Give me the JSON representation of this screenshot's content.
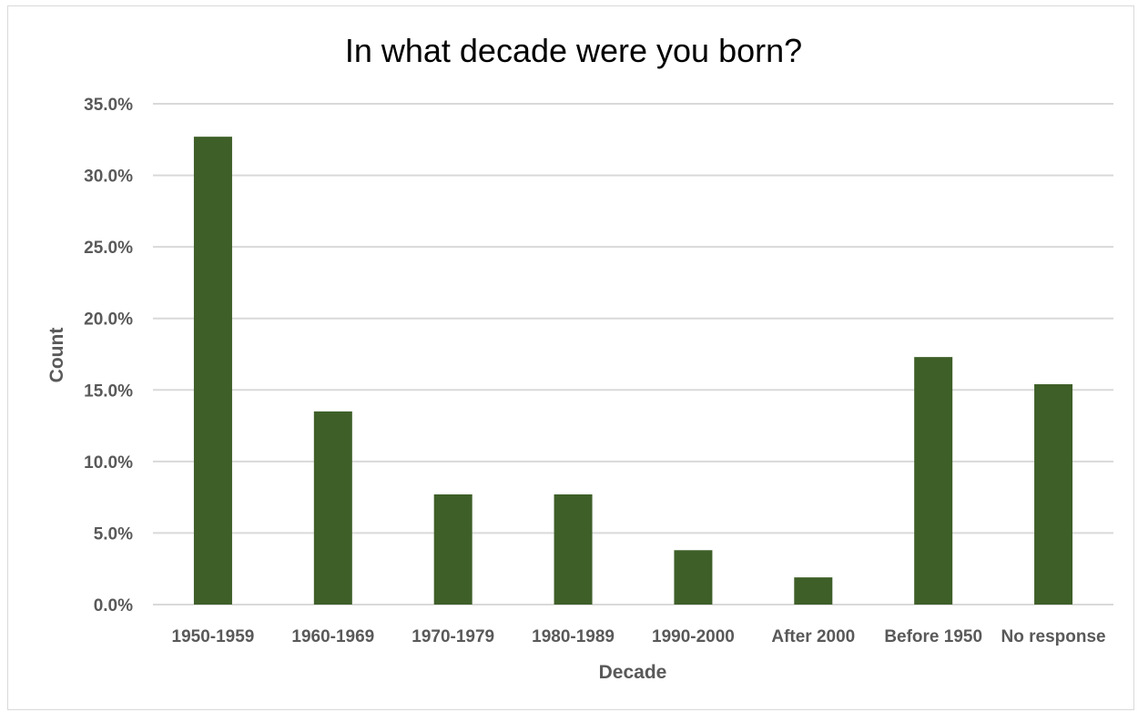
{
  "chart_data": {
    "type": "bar",
    "title": "In what decade were you born?",
    "xlabel": "Decade",
    "ylabel": "Count",
    "categories": [
      "1950-1959",
      "1960-1969",
      "1970-1979",
      "1980-1989",
      "1990-2000",
      "After 2000",
      "Before 1950",
      "No response"
    ],
    "values": [
      32.7,
      13.5,
      7.7,
      7.7,
      3.8,
      1.9,
      17.3,
      15.4
    ],
    "ylim": [
      0,
      35
    ],
    "yticks": [
      0,
      5,
      10,
      15,
      20,
      25,
      30,
      35
    ],
    "ytick_labels": [
      "0.0%",
      "5.0%",
      "10.0%",
      "15.0%",
      "20.0%",
      "25.0%",
      "30.0%",
      "35.0%"
    ],
    "value_unit": "percent",
    "bar_color": "#3e5f28",
    "grid": true,
    "legend": "none"
  }
}
